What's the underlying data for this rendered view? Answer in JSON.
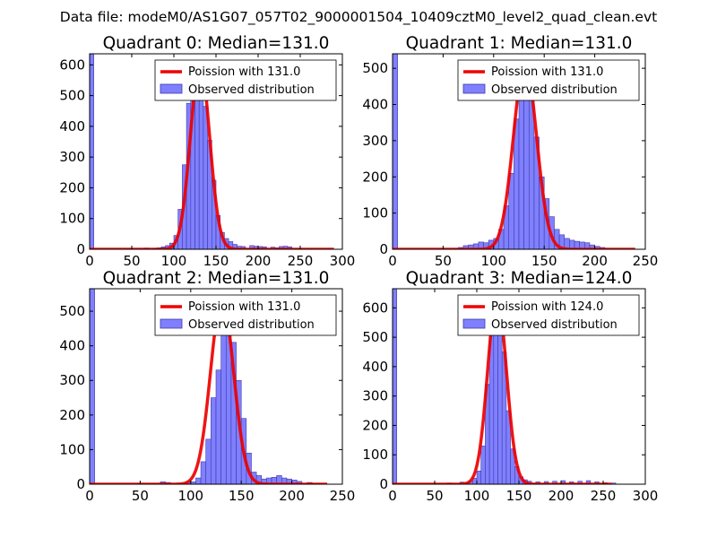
{
  "figure": {
    "suptitle": "Data file: modeM0/AS1G07_057T02_9000001504_10409cztM0_level2_quad_clean.evt"
  },
  "colors": {
    "bar_fill": "#8080ff",
    "bar_edge": "#3a3aa8",
    "fit_line": "#ee0000"
  },
  "chart_data": [
    {
      "type": "bar",
      "title": "Quadrant 0: Median=131.0",
      "xlabel": "",
      "ylabel": "",
      "xlim": [
        0,
        300
      ],
      "ylim": [
        0,
        636
      ],
      "xticks": [
        0,
        50,
        100,
        150,
        200,
        250,
        300
      ],
      "yticks": [
        0,
        100,
        200,
        300,
        400,
        500,
        600
      ],
      "bin_width": 5,
      "series": [
        {
          "name": "Poission with 131.0",
          "kind": "line",
          "mean": 131.0,
          "peak": 605,
          "x_range": [
            0,
            290
          ]
        },
        {
          "name": "Observed distribution",
          "kind": "hist",
          "bins": [
            [
              0,
              636
            ],
            [
              65,
              4
            ],
            [
              75,
              3
            ],
            [
              80,
              5
            ],
            [
              85,
              8
            ],
            [
              90,
              12
            ],
            [
              95,
              20
            ],
            [
              100,
              45
            ],
            [
              105,
              130
            ],
            [
              110,
              275
            ],
            [
              115,
              475
            ],
            [
              120,
              580
            ],
            [
              125,
              610
            ],
            [
              130,
              560
            ],
            [
              135,
              465
            ],
            [
              140,
              355
            ],
            [
              145,
              225
            ],
            [
              150,
              110
            ],
            [
              155,
              55
            ],
            [
              160,
              35
            ],
            [
              165,
              25
            ],
            [
              170,
              16
            ],
            [
              175,
              10
            ],
            [
              180,
              9
            ],
            [
              190,
              12
            ],
            [
              195,
              10
            ],
            [
              200,
              9
            ],
            [
              205,
              8
            ],
            [
              215,
              7
            ],
            [
              220,
              5
            ],
            [
              225,
              9
            ],
            [
              230,
              10
            ],
            [
              235,
              8
            ]
          ]
        }
      ],
      "legend": {
        "loc": "upper right"
      }
    },
    {
      "type": "bar",
      "title": "Quadrant 1: Median=131.0",
      "xlabel": "",
      "ylabel": "",
      "xlim": [
        0,
        250
      ],
      "ylim": [
        0,
        540
      ],
      "xticks": [
        0,
        50,
        100,
        150,
        200,
        250
      ],
      "yticks": [
        0,
        100,
        200,
        300,
        400,
        500
      ],
      "bin_width": 5,
      "series": [
        {
          "name": "Poission with 131.0",
          "kind": "line",
          "mean": 131.0,
          "peak": 515,
          "x_range": [
            0,
            240
          ]
        },
        {
          "name": "Observed distribution",
          "kind": "hist",
          "bins": [
            [
              0,
              540
            ],
            [
              65,
              5
            ],
            [
              70,
              10
            ],
            [
              75,
              12
            ],
            [
              80,
              15
            ],
            [
              85,
              20
            ],
            [
              90,
              18
            ],
            [
              95,
              25
            ],
            [
              100,
              30
            ],
            [
              105,
              55
            ],
            [
              110,
              120
            ],
            [
              115,
              210
            ],
            [
              120,
              360
            ],
            [
              125,
              460
            ],
            [
              130,
              500
            ],
            [
              135,
              445
            ],
            [
              140,
              310
            ],
            [
              145,
              200
            ],
            [
              150,
              140
            ],
            [
              155,
              90
            ],
            [
              160,
              55
            ],
            [
              165,
              40
            ],
            [
              170,
              30
            ],
            [
              175,
              25
            ],
            [
              180,
              22
            ],
            [
              185,
              20
            ],
            [
              190,
              18
            ],
            [
              195,
              12
            ],
            [
              200,
              8
            ],
            [
              205,
              5
            ]
          ]
        }
      ],
      "legend": {
        "loc": "upper right"
      }
    },
    {
      "type": "bar",
      "title": "Quadrant 2: Median=131.0",
      "xlabel": "",
      "ylabel": "",
      "xlim": [
        0,
        250
      ],
      "ylim": [
        0,
        565
      ],
      "xticks": [
        0,
        50,
        100,
        150,
        200,
        250
      ],
      "yticks": [
        0,
        100,
        200,
        300,
        400,
        500
      ],
      "bin_width": 5,
      "series": [
        {
          "name": "Poission with 131.0",
          "kind": "line",
          "mean": 131.0,
          "peak": 535,
          "x_range": [
            0,
            235
          ]
        },
        {
          "name": "Observed distribution",
          "kind": "hist",
          "bins": [
            [
              0,
              565
            ],
            [
              70,
              7
            ],
            [
              75,
              5
            ],
            [
              95,
              5
            ],
            [
              100,
              7
            ],
            [
              105,
              18
            ],
            [
              110,
              65
            ],
            [
              115,
              130
            ],
            [
              120,
              250
            ],
            [
              125,
              330
            ],
            [
              130,
              510
            ],
            [
              135,
              500
            ],
            [
              140,
              410
            ],
            [
              145,
              300
            ],
            [
              150,
              190
            ],
            [
              155,
              90
            ],
            [
              160,
              35
            ],
            [
              165,
              25
            ],
            [
              170,
              15
            ],
            [
              175,
              18
            ],
            [
              180,
              20
            ],
            [
              185,
              25
            ],
            [
              190,
              18
            ],
            [
              195,
              15
            ],
            [
              200,
              12
            ],
            [
              205,
              8
            ],
            [
              215,
              5
            ]
          ]
        }
      ],
      "legend": {
        "loc": "upper right"
      }
    },
    {
      "type": "bar",
      "title": "Quadrant 3: Median=124.0",
      "xlabel": "",
      "ylabel": "",
      "xlim": [
        0,
        300
      ],
      "ylim": [
        0,
        665
      ],
      "xticks": [
        0,
        50,
        100,
        150,
        200,
        250,
        300
      ],
      "yticks": [
        0,
        100,
        200,
        300,
        400,
        500,
        600
      ],
      "bin_width": 5,
      "series": [
        {
          "name": "Poission with 124.0",
          "kind": "line",
          "mean": 124.0,
          "peak": 640,
          "x_range": [
            0,
            260
          ]
        },
        {
          "name": "Observed distribution",
          "kind": "hist",
          "bins": [
            [
              0,
              665
            ],
            [
              65,
              4
            ],
            [
              80,
              7
            ],
            [
              85,
              6
            ],
            [
              90,
              10
            ],
            [
              95,
              20
            ],
            [
              100,
              45
            ],
            [
              105,
              130
            ],
            [
              110,
              340
            ],
            [
              115,
              530
            ],
            [
              120,
              640
            ],
            [
              125,
              600
            ],
            [
              130,
              450
            ],
            [
              135,
              250
            ],
            [
              140,
              120
            ],
            [
              145,
              60
            ],
            [
              150,
              25
            ],
            [
              155,
              15
            ],
            [
              160,
              10
            ],
            [
              170,
              8
            ],
            [
              180,
              9
            ],
            [
              190,
              10
            ],
            [
              200,
              12
            ],
            [
              210,
              8
            ],
            [
              220,
              10
            ],
            [
              230,
              12
            ],
            [
              240,
              8
            ],
            [
              250,
              5
            ],
            [
              260,
              4
            ]
          ]
        }
      ],
      "legend": {
        "loc": "upper right"
      }
    }
  ]
}
